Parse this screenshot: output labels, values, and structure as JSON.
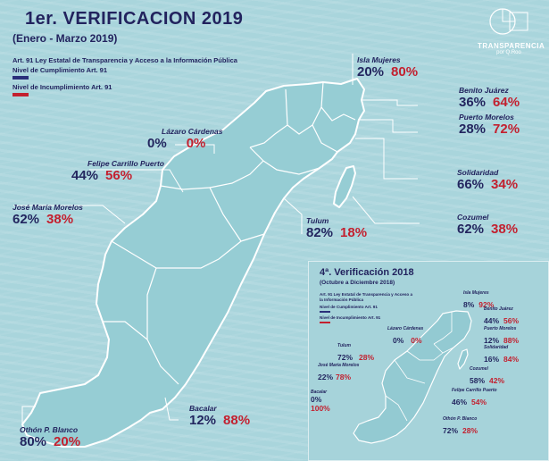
{
  "header": {
    "title": "1er. VERIFICACION  2019",
    "subtitle": "(Enero - Marzo 2019)",
    "law_label": "Art. 91 Ley Estatal de Transparencia y Acceso a la Información Pública",
    "compliance_label": "Nivel de Cumplimiento Art. 91",
    "noncompliance_label": "Nivel de Incumplimiento Art. 91"
  },
  "logo": {
    "text": "TRANSPARENCIA",
    "sub": "por Q.Roo"
  },
  "colors": {
    "compliance": "#2a2f7a",
    "noncompliance": "#c3202f",
    "map_fill": "#96cdd4",
    "map_stroke": "#ffffff"
  },
  "municipalities": {
    "isla_mujeres": {
      "name": "Isla Mujeres",
      "compliance": "20%",
      "noncompliance": "80%"
    },
    "benito_juarez": {
      "name": "Benito Juárez",
      "compliance": "36%",
      "noncompliance": "64%"
    },
    "puerto_morelos": {
      "name": "Puerto Morelos",
      "compliance": "28%",
      "noncompliance": "72%"
    },
    "lazaro_cardenas": {
      "name": "Lázaro Cárdenas",
      "compliance": "0%",
      "noncompliance": "0%"
    },
    "felipe_carrillo_puerto": {
      "name": "Felipe Carrillo Puerto",
      "compliance": "44%",
      "noncompliance": "56%"
    },
    "solidaridad": {
      "name": "Solidaridad",
      "compliance": "66%",
      "noncompliance": "34%"
    },
    "jose_maria_morelos": {
      "name": "José María Morelos",
      "compliance": "62%",
      "noncompliance": "38%"
    },
    "tulum": {
      "name": "Tulum",
      "compliance": "82%",
      "noncompliance": "18%"
    },
    "cozumel": {
      "name": "Cozumel",
      "compliance": "62%",
      "noncompliance": "38%"
    },
    "bacalar": {
      "name": "Bacalar",
      "compliance": "12%",
      "noncompliance": "88%"
    },
    "othon_p_blanco": {
      "name": "Othón P. Blanco",
      "compliance": "80%",
      "noncompliance": "20%"
    }
  },
  "inset": {
    "title": "4ª. Verificación 2018",
    "subtitle": "(Octubre a Diciembre 2018)",
    "law_label": "Art. 91 Ley Estatal de Transparencia y Acceso a la Información Pública",
    "compliance_label": "Nivel de Cumplimiento Art. 91",
    "noncompliance_label": "Nivel de Incumplimiento Art. 91",
    "municipalities": {
      "isla_mujeres": {
        "name": "Isla Mujeres",
        "compliance": "8%",
        "noncompliance": "92%"
      },
      "benito_juarez": {
        "name": "Benito Juárez",
        "compliance": "44%",
        "noncompliance": "56%"
      },
      "lazaro_cardenas": {
        "name": "Lázaro Cárdenas",
        "compliance": "0%",
        "noncompliance": "0%"
      },
      "puerto_morelos": {
        "name": "Puerto Morelos",
        "compliance": "12%",
        "noncompliance": "88%"
      },
      "tulum": {
        "name": "Tulum",
        "compliance": "72%",
        "noncompliance": "28%"
      },
      "solidaridad": {
        "name": "Solidaridad",
        "compliance": "16%",
        "noncompliance": "84%"
      },
      "jose_maria_morelos": {
        "name": "José María Morelos",
        "compliance": "22%",
        "noncompliance": "78%"
      },
      "cozumel": {
        "name": "Cozumel",
        "compliance": "58%",
        "noncompliance": "42%"
      },
      "bacalar": {
        "name": "Bacalar",
        "compliance": "0%",
        "noncompliance": "100%"
      },
      "felipe_carrillo_puerto": {
        "name": "Felipe Carrillo Puerto",
        "compliance": "46%",
        "noncompliance": "54%"
      },
      "othon_p_blanco": {
        "name": "Othón P. Blanco",
        "compliance": "72%",
        "noncompliance": "28%"
      }
    }
  }
}
